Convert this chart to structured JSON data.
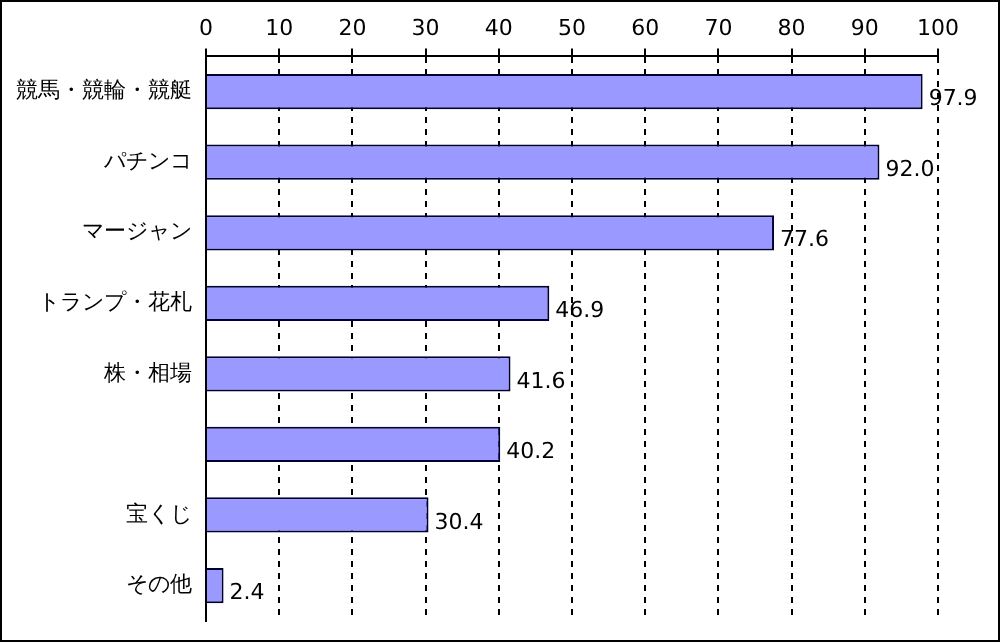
{
  "chart_data": {
    "type": "bar",
    "orientation": "horizontal",
    "categories": [
      "競馬・競輪・競艇",
      "パチンコ",
      "マージャン",
      "トランプ・花札",
      "株・相場",
      null,
      "宝くじ",
      "その他"
    ],
    "values": [
      97.9,
      92.0,
      77.6,
      46.9,
      41.6,
      40.2,
      30.4,
      2.4
    ],
    "value_labels": [
      "97.9",
      "92.0",
      "77.6",
      "46.9",
      "41.6",
      "40.2",
      "30.4",
      "2.4"
    ],
    "color": "#9999ff",
    "xlim": [
      0,
      100
    ],
    "xticks": [
      0,
      10,
      20,
      30,
      40,
      50,
      60,
      70,
      80,
      90,
      100
    ],
    "grid": "x",
    "legend": false
  }
}
